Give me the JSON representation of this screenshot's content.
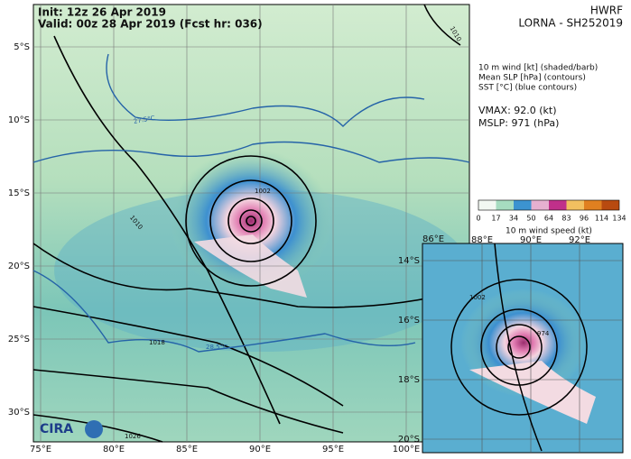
{
  "header": {
    "init": "Init:  12z 26 Apr 2019",
    "valid": "Valid: 00z 28 Apr 2019 (Fcst hr: 036)",
    "model": "HWRF",
    "storm": "LORNA - SH252019"
  },
  "legend": {
    "lines": [
      "10 m wind [kt] (shaded/barb)",
      "Mean SLP [hPa] (contours)",
      "SST [°C] (blue contours)"
    ],
    "vmax": "VMAX:  92.0 (kt)",
    "mslp": "MSLP:  971 (hPa)"
  },
  "colorbar": {
    "ticks": [
      "0",
      "17",
      "34",
      "50",
      "64",
      "83",
      "96",
      "114",
      "134"
    ],
    "label": "10 m wind speed (kt)"
  },
  "map": {
    "lat_labels": [
      "5°S",
      "10°S",
      "15°S",
      "20°S",
      "25°S",
      "30°S"
    ],
    "lon_labels": [
      "75°E",
      "80°E",
      "85°E",
      "90°E",
      "95°E",
      "100°E"
    ],
    "contour_labels": [
      "1010",
      "1010",
      "1002",
      "1018",
      "1026",
      "27.5°C",
      "28.5°C"
    ],
    "logo": "CIRA"
  },
  "inset": {
    "lon_labels": [
      "86°E",
      "88°E",
      "90°E",
      "92°E"
    ],
    "lat_labels": [
      "14°S",
      "16°S",
      "18°S",
      "20°S"
    ],
    "contour_labels": [
      "1002",
      "974"
    ]
  }
}
